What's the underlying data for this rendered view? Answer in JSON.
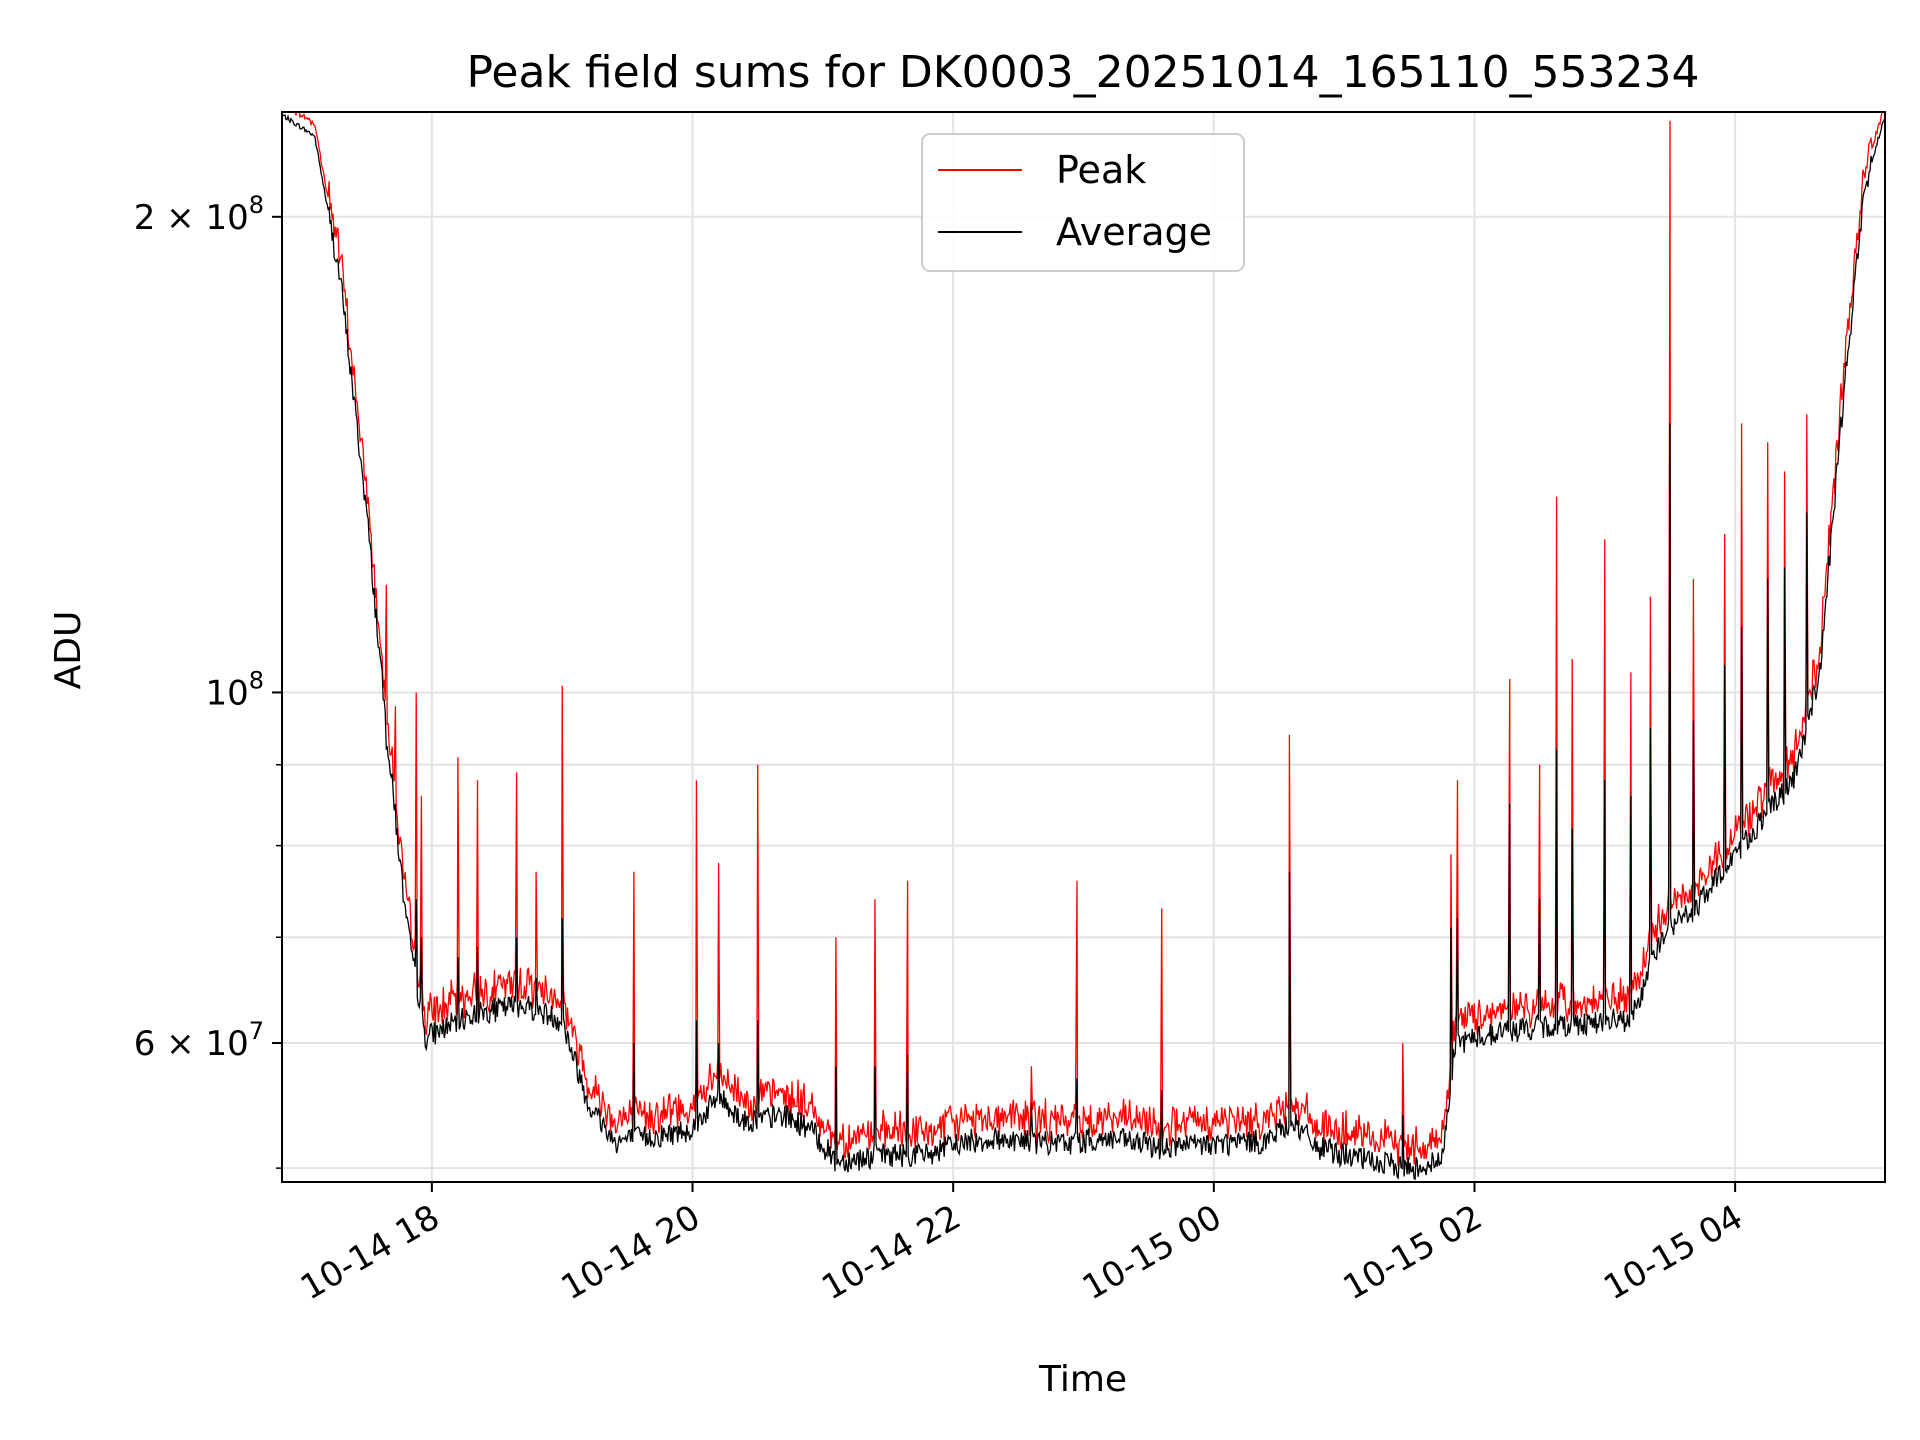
{
  "chart_data": {
    "type": "line",
    "title": "Peak field sums for DK0003_20251014_165110_553234",
    "xlabel": "Time",
    "ylabel": "ADU",
    "yscale": "log",
    "grid": true,
    "legend_position": "top-center",
    "xlim": [
      16.85,
      29.15
    ],
    "ylim": [
      49000000,
      233000000
    ],
    "x_ticks": [
      {
        "value": 18,
        "label": "10-14 18"
      },
      {
        "value": 20,
        "label": "10-14 20"
      },
      {
        "value": 22,
        "label": "10-14 22"
      },
      {
        "value": 24,
        "label": "10-15 00"
      },
      {
        "value": 26,
        "label": "10-15 02"
      },
      {
        "value": 28,
        "label": "10-15 04"
      }
    ],
    "y_major_ticks": [
      {
        "value": 60000000,
        "label": "6 × 10^7",
        "mantissa": "6 × 10",
        "exponent": "7"
      },
      {
        "value": 100000000,
        "label": "10^8",
        "mantissa": "10",
        "exponent": "8"
      },
      {
        "value": 200000000,
        "label": "2 × 10^8",
        "mantissa": "2 × 10",
        "exponent": "8"
      }
    ],
    "y_minor_ticks": [
      50000000,
      70000000,
      80000000,
      90000000
    ],
    "series": [
      {
        "name": "Peak",
        "color": "#ff0000"
      },
      {
        "name": "Average",
        "color": "#000000"
      }
    ],
    "baseline_profile": {
      "x": [
        16.85,
        17.1,
        17.3,
        17.5,
        17.65,
        17.8,
        17.95,
        18.3,
        18.7,
        19.0,
        19.2,
        19.4,
        19.8,
        20.0,
        20.2,
        20.4,
        20.7,
        20.9,
        21.1,
        21.5,
        21.8,
        22.1,
        22.4,
        22.8,
        23.2,
        23.6,
        24.0,
        24.4,
        24.6,
        24.8,
        25.2,
        25.5,
        25.75,
        25.85,
        26.2,
        26.6,
        27.0,
        27.2,
        27.45,
        27.7,
        27.95,
        28.2,
        28.45,
        28.65,
        28.85,
        29.0,
        29.15
      ],
      "average": [
        232000000,
        225000000,
        182000000,
        130000000,
        95000000,
        72000000,
        60500000,
        62500000,
        63500000,
        62000000,
        55000000,
        52000000,
        52500000,
        53000000,
        55500000,
        53500000,
        54000000,
        53000000,
        50500000,
        51000000,
        51000000,
        52000000,
        52200000,
        51800000,
        52200000,
        51500000,
        51800000,
        52000000,
        53500000,
        51500000,
        50500000,
        50000000,
        50500000,
        60000000,
        61000000,
        61500000,
        62000000,
        62000000,
        70500000,
        73000000,
        78000000,
        83000000,
        88000000,
        103000000,
        160000000,
        210000000,
        232000000
      ],
      "peak_offset": 1.015
    },
    "noise": {
      "average_pct": 0.018,
      "peak_pct": 0.035,
      "seed": 7
    },
    "spikes": [
      {
        "x": 17.65,
        "peak": 117000000,
        "average": 92000000
      },
      {
        "x": 17.72,
        "peak": 98000000,
        "average": 85000000
      },
      {
        "x": 17.88,
        "peak": 100000000,
        "average": 74000000
      },
      {
        "x": 17.92,
        "peak": 86000000,
        "average": 70000000
      },
      {
        "x": 18.2,
        "peak": 91000000,
        "average": 68000000
      },
      {
        "x": 18.35,
        "peak": 88000000,
        "average": 69000000
      },
      {
        "x": 18.65,
        "peak": 89000000,
        "average": 70000000
      },
      {
        "x": 18.8,
        "peak": 77000000,
        "average": 66000000
      },
      {
        "x": 19.0,
        "peak": 101000000,
        "average": 72000000
      },
      {
        "x": 19.55,
        "peak": 77000000,
        "average": 60000000
      },
      {
        "x": 20.03,
        "peak": 88000000,
        "average": 62000000
      },
      {
        "x": 20.2,
        "peak": 78000000,
        "average": 60000000
      },
      {
        "x": 20.5,
        "peak": 90000000,
        "average": 62000000
      },
      {
        "x": 21.1,
        "peak": 70000000,
        "average": 58000000
      },
      {
        "x": 21.4,
        "peak": 74000000,
        "average": 58000000
      },
      {
        "x": 21.65,
        "peak": 76000000,
        "average": 59000000
      },
      {
        "x": 22.6,
        "peak": 58000000,
        "average": 55000000
      },
      {
        "x": 22.95,
        "peak": 76000000,
        "average": 57000000
      },
      {
        "x": 23.6,
        "peak": 73000000,
        "average": 56000000
      },
      {
        "x": 24.58,
        "peak": 94000000,
        "average": 77000000
      },
      {
        "x": 25.45,
        "peak": 60000000,
        "average": 54000000
      },
      {
        "x": 25.82,
        "peak": 79000000,
        "average": 71000000
      },
      {
        "x": 25.87,
        "peak": 88000000,
        "average": 72000000
      },
      {
        "x": 26.27,
        "peak": 102000000,
        "average": 85000000
      },
      {
        "x": 26.5,
        "peak": 90000000,
        "average": 74000000
      },
      {
        "x": 26.63,
        "peak": 133000000,
        "average": 92000000
      },
      {
        "x": 26.75,
        "peak": 105000000,
        "average": 82000000
      },
      {
        "x": 27.0,
        "peak": 125000000,
        "average": 88000000
      },
      {
        "x": 27.2,
        "peak": 103000000,
        "average": 86000000
      },
      {
        "x": 27.35,
        "peak": 115000000,
        "average": 95000000
      },
      {
        "x": 27.5,
        "peak": 230000000,
        "average": 148000000
      },
      {
        "x": 27.68,
        "peak": 118000000,
        "average": 96000000
      },
      {
        "x": 27.92,
        "peak": 126000000,
        "average": 104000000
      },
      {
        "x": 28.05,
        "peak": 148000000,
        "average": 110000000
      },
      {
        "x": 28.25,
        "peak": 144000000,
        "average": 118000000
      },
      {
        "x": 28.38,
        "peak": 138000000,
        "average": 120000000
      },
      {
        "x": 28.55,
        "peak": 150000000,
        "average": 130000000
      }
    ]
  }
}
